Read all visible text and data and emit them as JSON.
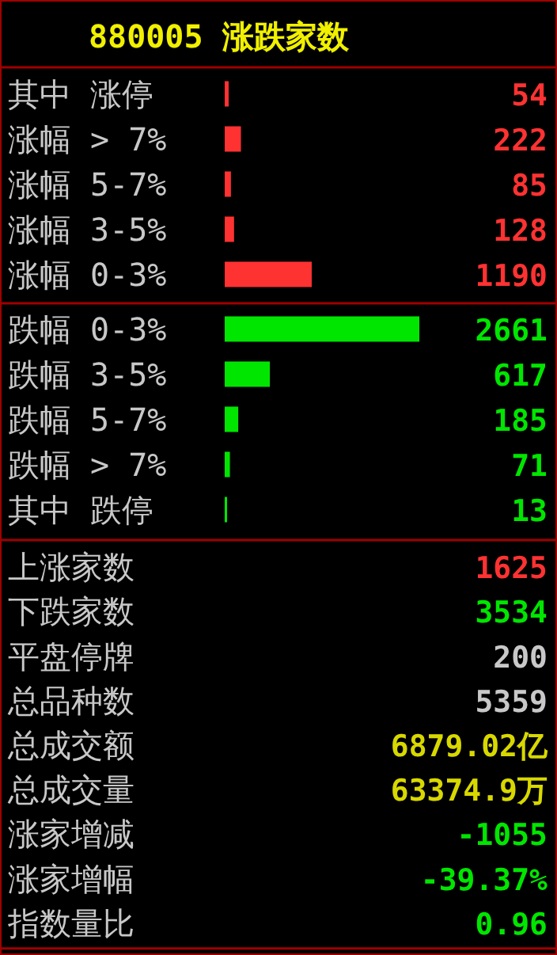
{
  "chart_data": [
    {
      "type": "bar",
      "title": "880005 涨跌家数",
      "orientation": "horizontal",
      "data_labels": true,
      "categories": [
        "其中 涨停",
        "涨幅 > 7%",
        "涨幅 5-7%",
        "涨幅 3-5%",
        "涨幅 0-3%",
        "跌幅 0-3%",
        "跌幅 3-5%",
        "跌幅 5-7%",
        "跌幅 > 7%",
        "其中 跌停"
      ],
      "values": [
        54,
        222,
        85,
        128,
        1190,
        2661,
        617,
        185,
        71,
        13
      ],
      "colors": [
        "#ff3232",
        "#ff3232",
        "#ff3232",
        "#ff3232",
        "#ff3232",
        "#00e600",
        "#00e600",
        "#00e600",
        "#00e600",
        "#00e600"
      ]
    },
    {
      "type": "other",
      "categories": [
        "上涨家数",
        "下跌家数",
        "平盘停牌",
        "总品种数",
        "总成交额",
        "总成交量",
        "涨家增减",
        "涨家增幅",
        "指数量比"
      ],
      "values": [
        1625,
        3534,
        200,
        5359,
        6879.02,
        63374.9,
        -1055,
        -39.37,
        0.96
      ],
      "value_labels": [
        "1625",
        "3534",
        "200",
        "5359",
        "6879.02亿",
        "63374.9万",
        "-1055",
        "-39.37%",
        "0.96"
      ],
      "colors": [
        "#ff3232",
        "#00e600",
        "#c8c8c8",
        "#c8c8c8",
        "#d8d800",
        "#d8d800",
        "#00e600",
        "#00e600",
        "#00e600"
      ]
    }
  ]
}
